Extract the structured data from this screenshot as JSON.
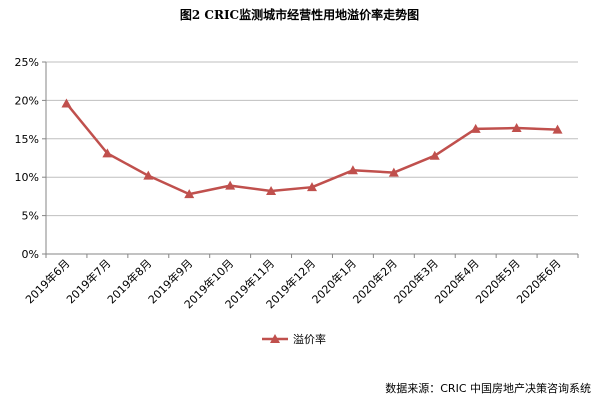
{
  "title": "图2   CRIC监测城市经营性用地溢价率走势图",
  "source": "数据来源：CRIC 中国房地产决策咨询系统",
  "chart_data": {
    "type": "line",
    "categories": [
      "2019年6月",
      "2019年7月",
      "2019年8月",
      "2019年9月",
      "2019年10月",
      "2019年11月",
      "2019年12月",
      "2020年1月",
      "2020年2月",
      "2020年3月",
      "2020年4月",
      "2020年5月",
      "2020年6月"
    ],
    "series": [
      {
        "name": "溢价率",
        "values": [
          19.6,
          13.1,
          10.2,
          7.8,
          8.9,
          8.2,
          8.7,
          10.9,
          10.6,
          12.8,
          16.3,
          16.4,
          16.2
        ]
      }
    ],
    "ylim": [
      0,
      25
    ],
    "yticks": [
      0,
      5,
      10,
      15,
      20,
      25
    ],
    "ytick_suffix": "%",
    "grid": true,
    "legend": "bottom",
    "colors": {
      "series": "#c0504d",
      "grid": "#bfbfbf",
      "axis": "#868686"
    }
  }
}
